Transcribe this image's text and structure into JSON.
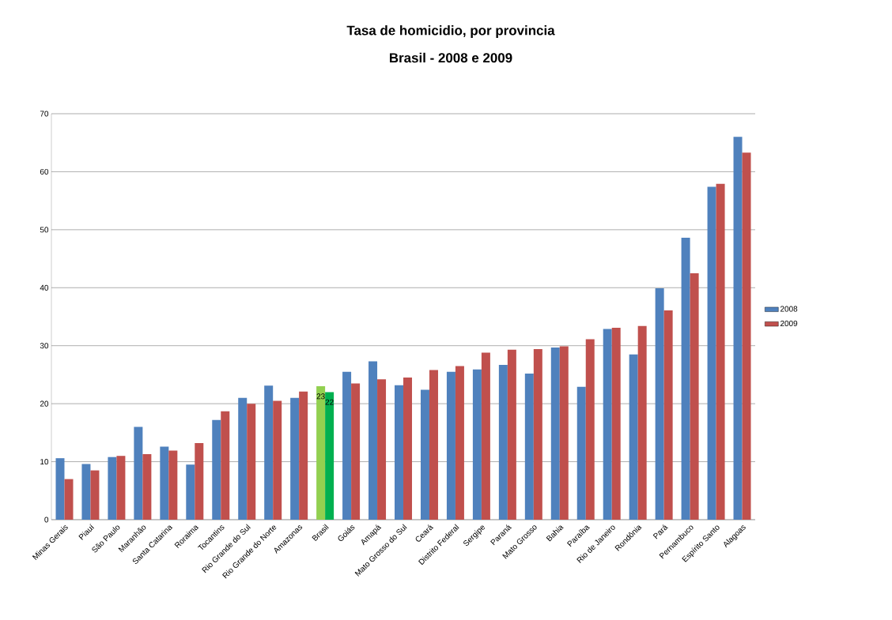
{
  "chart_data": {
    "type": "bar",
    "title": "Tasa de homicidio, por provincia",
    "subtitle": "Brasil - 2008 e 2009",
    "categories": [
      "Minas Gerais",
      "Piauí",
      "São Paulo",
      "Maranhão",
      "Santa Catarina",
      "Roraima",
      "Tocantins",
      "Rio Grande do Sul",
      "Rio Grande do Norte",
      "Amazonas",
      "Brasil",
      "Goiás",
      "Amapá",
      "Mato Grosso do Sul",
      "Ceará",
      "Distrito Federal",
      "Sergipe",
      "Paraná",
      "Mato Grosso",
      "Bahia",
      "Paraíba",
      "Rio de Janeiro",
      "Rondônia",
      "Pará",
      "Pernambuco",
      "Espírito Santo",
      "Alagoas"
    ],
    "series": [
      {
        "name": "2008",
        "color": "#4f81bd",
        "colors": [
          "#4f81bd",
          "#4f81bd",
          "#4f81bd",
          "#4f81bd",
          "#4f81bd",
          "#4f81bd",
          "#4f81bd",
          "#4f81bd",
          "#4f81bd",
          "#4f81bd",
          "#92d050",
          "#4f81bd",
          "#4f81bd",
          "#4f81bd",
          "#4f81bd",
          "#4f81bd",
          "#4f81bd",
          "#4f81bd",
          "#4f81bd",
          "#4f81bd",
          "#4f81bd",
          "#4f81bd",
          "#4f81bd",
          "#4f81bd",
          "#4f81bd",
          "#4f81bd",
          "#4f81bd"
        ],
        "values": [
          10.6,
          9.6,
          10.8,
          16.0,
          12.6,
          9.5,
          17.2,
          21.0,
          23.1,
          21.0,
          23,
          25.5,
          27.3,
          23.2,
          22.4,
          25.5,
          25.9,
          26.7,
          25.2,
          29.7,
          22.9,
          32.9,
          28.5,
          39.9,
          48.6,
          57.4,
          66.0
        ],
        "value_labels": [
          null,
          null,
          null,
          null,
          null,
          null,
          null,
          null,
          null,
          null,
          "23",
          null,
          null,
          null,
          null,
          null,
          null,
          null,
          null,
          null,
          null,
          null,
          null,
          null,
          null,
          null,
          null
        ]
      },
      {
        "name": "2009",
        "color": "#c0504d",
        "colors": [
          "#c0504d",
          "#c0504d",
          "#c0504d",
          "#c0504d",
          "#c0504d",
          "#c0504d",
          "#c0504d",
          "#c0504d",
          "#c0504d",
          "#c0504d",
          "#00b050",
          "#c0504d",
          "#c0504d",
          "#c0504d",
          "#c0504d",
          "#c0504d",
          "#c0504d",
          "#c0504d",
          "#c0504d",
          "#c0504d",
          "#c0504d",
          "#c0504d",
          "#c0504d",
          "#c0504d",
          "#c0504d",
          "#c0504d",
          "#c0504d"
        ],
        "values": [
          7.0,
          8.5,
          11.0,
          11.3,
          11.9,
          13.2,
          18.7,
          20.0,
          20.5,
          22.1,
          22,
          23.5,
          24.2,
          24.5,
          25.8,
          26.5,
          28.8,
          29.3,
          29.4,
          29.9,
          31.1,
          33.1,
          33.4,
          36.1,
          42.5,
          57.9,
          63.3
        ],
        "value_labels": [
          null,
          null,
          null,
          null,
          null,
          null,
          null,
          null,
          null,
          null,
          "22",
          null,
          null,
          null,
          null,
          null,
          null,
          null,
          null,
          null,
          null,
          null,
          null,
          null,
          null,
          null,
          null
        ]
      }
    ],
    "ylim": [
      0,
      70
    ],
    "yticks": [
      0,
      10,
      20,
      30,
      40,
      50,
      60,
      70
    ],
    "grid": "y",
    "legend": "right"
  }
}
